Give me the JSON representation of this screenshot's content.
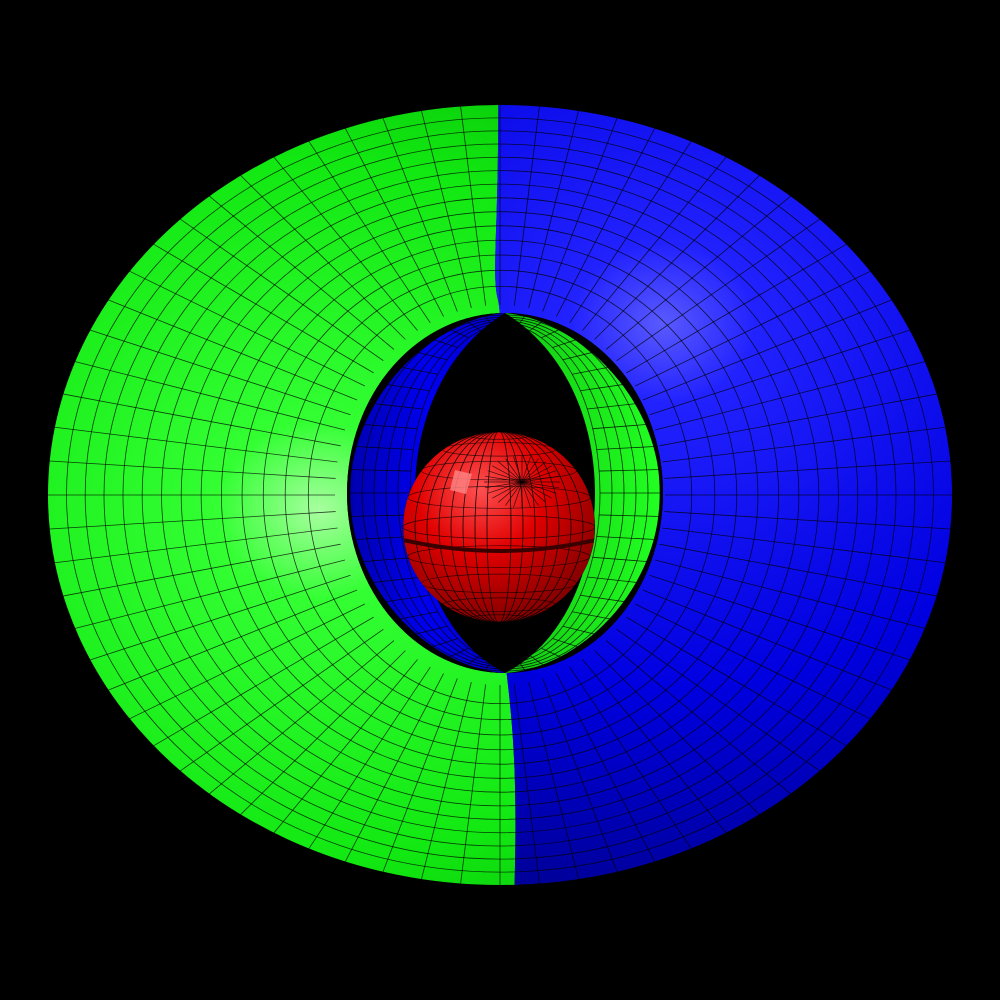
{
  "scene": {
    "background_color": "#000000",
    "objects": [
      {
        "name": "torus-left-half",
        "color": "#00e000",
        "mesh_line_color": "#000000"
      },
      {
        "name": "torus-right-half",
        "color": "#0000e8",
        "mesh_line_color": "#000000"
      },
      {
        "name": "central-sphere",
        "color": "#cc0000",
        "mesh_line_color": "#000000"
      }
    ]
  }
}
